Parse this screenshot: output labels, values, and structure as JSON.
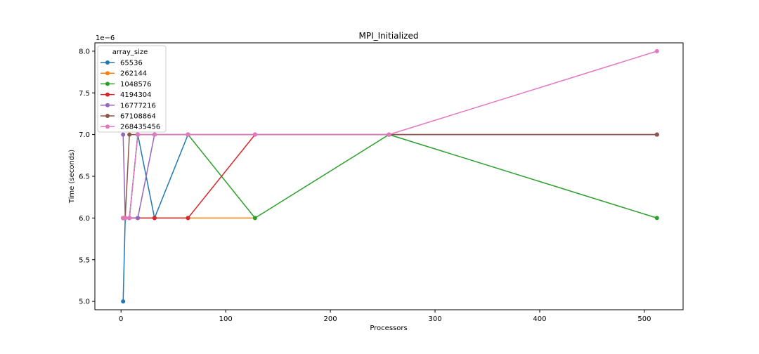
{
  "chart_data": {
    "type": "line",
    "title": "MPI_Initialized",
    "xlabel": "Processors",
    "ylabel": "Time (seconds)",
    "y_offset_label": "1e−6",
    "xlim": [
      -25,
      537
    ],
    "ylim": [
      4.9,
      8.1
    ],
    "x_ticks": [
      0,
      100,
      200,
      300,
      400,
      500
    ],
    "y_ticks": [
      5.0,
      5.5,
      6.0,
      6.5,
      7.0,
      7.5,
      8.0
    ],
    "x_tick_labels": [
      "0",
      "100",
      "200",
      "300",
      "400",
      "500"
    ],
    "y_tick_labels": [
      "5.0",
      "5.5",
      "6.0",
      "6.5",
      "7.0",
      "7.5",
      "8.0"
    ],
    "grid": false,
    "legend_title": "array_size",
    "legend_position": "top-left",
    "x": [
      2,
      4,
      8,
      16,
      32,
      64,
      128,
      256,
      512
    ],
    "series": [
      {
        "name": "65536",
        "color": "#1f77b4",
        "values": [
          5,
          6,
          6,
          7,
          6,
          7,
          null,
          null,
          null
        ]
      },
      {
        "name": "262144",
        "color": "#ff7f0e",
        "values": [
          6,
          6,
          6,
          6,
          6,
          6,
          6,
          null,
          null
        ]
      },
      {
        "name": "1048576",
        "color": "#2ca02c",
        "values": [
          6,
          6,
          6,
          7,
          7,
          7,
          6,
          7,
          6
        ]
      },
      {
        "name": "4194304",
        "color": "#d62728",
        "values": [
          6,
          6,
          6,
          6,
          6,
          6,
          7,
          7,
          7
        ]
      },
      {
        "name": "16777216",
        "color": "#9467bd",
        "values": [
          7,
          6,
          6,
          6,
          7,
          7,
          7,
          7,
          7
        ]
      },
      {
        "name": "67108864",
        "color": "#8c564b",
        "values": [
          6,
          6,
          7,
          7,
          7,
          7,
          7,
          7,
          7
        ]
      },
      {
        "name": "268435456",
        "color": "#e377c2",
        "values": [
          6,
          6,
          6,
          7,
          7,
          7,
          7,
          7,
          8
        ]
      }
    ]
  }
}
